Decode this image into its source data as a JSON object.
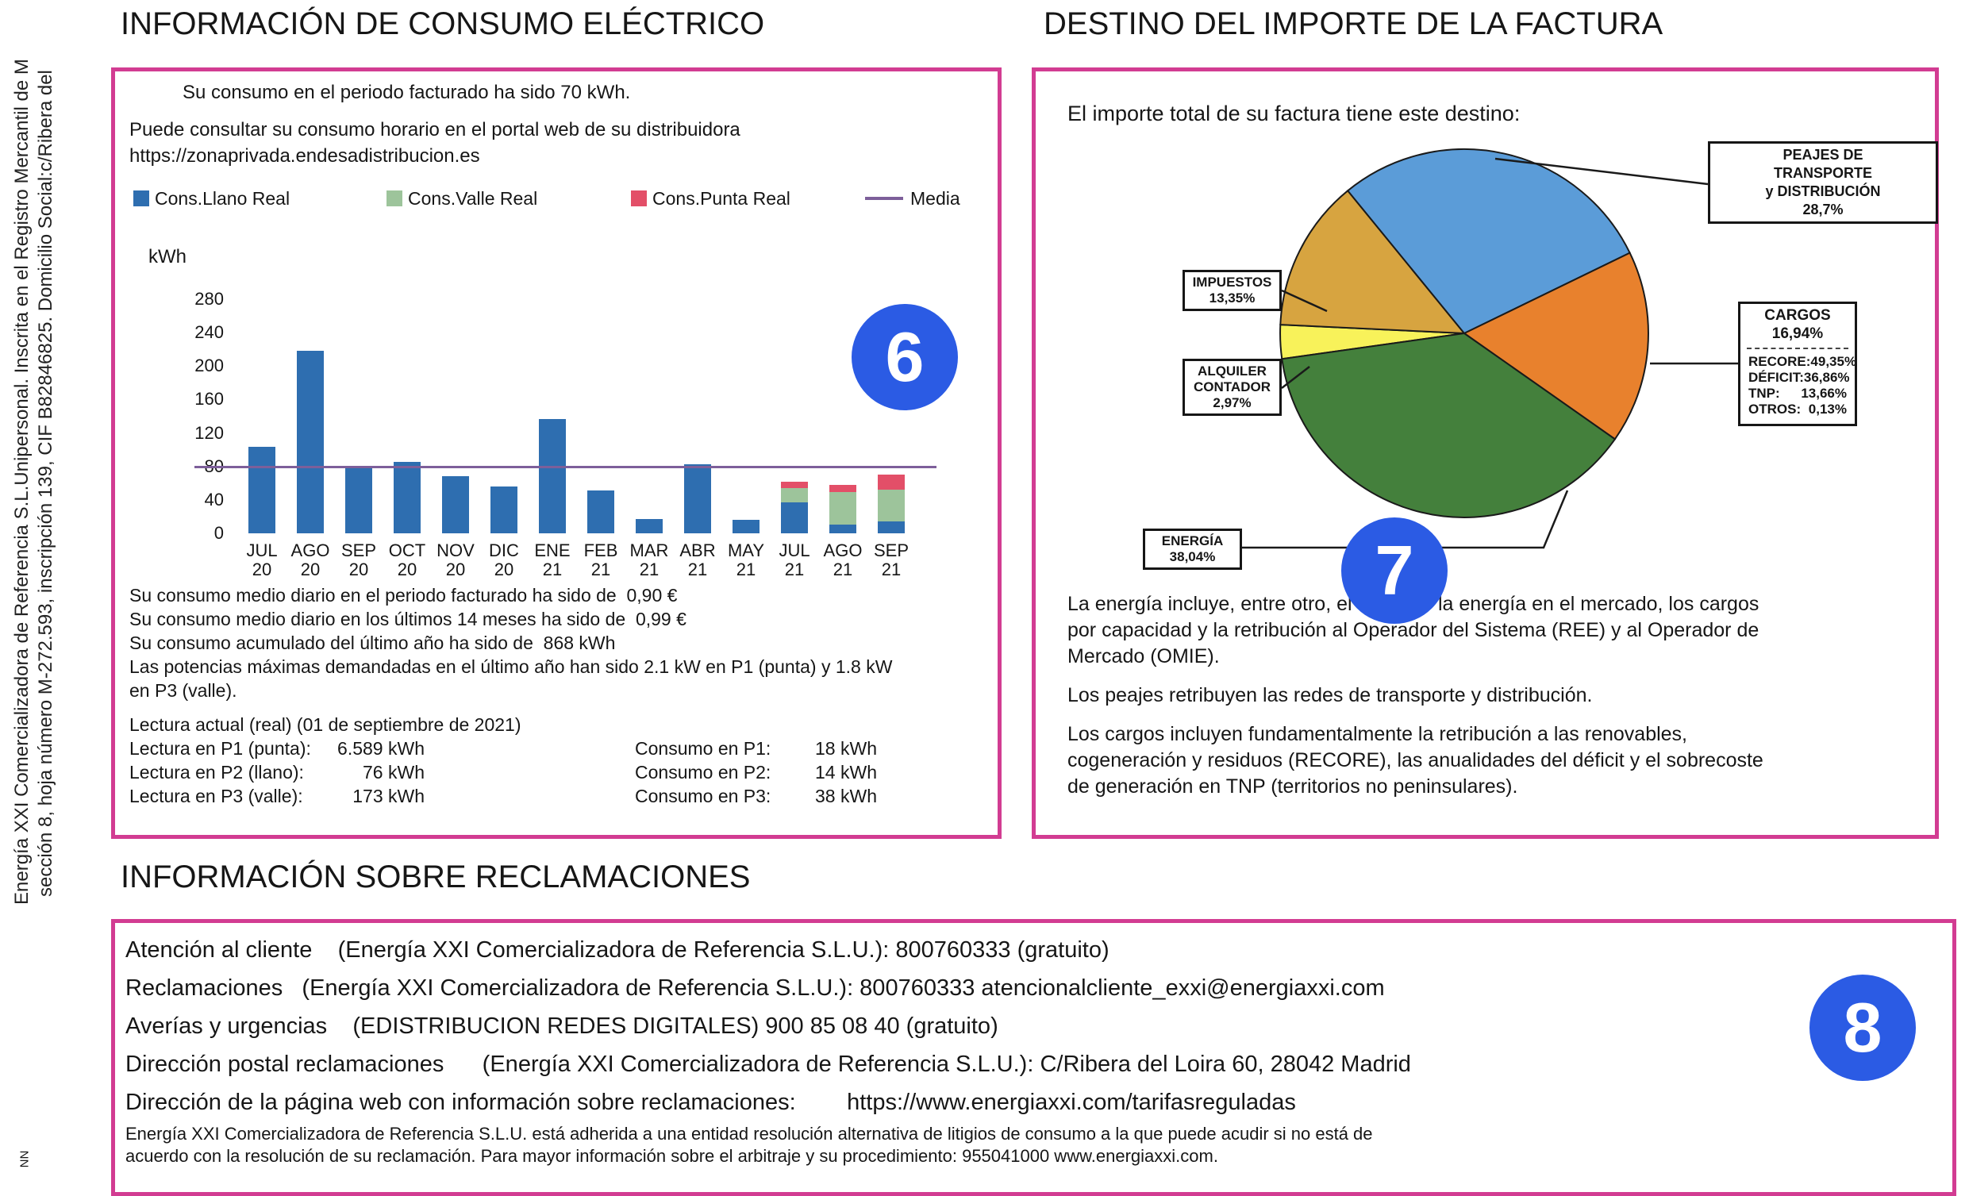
{
  "sidebar": {
    "line1": "Energía XXI Comercializadora de Referencia S.L.Unipersonal. Inscrita en el Registro Mercantil de M",
    "line2": "sección 8, hoja número M-272.593, inscripción 139, CIF B82846825. Domicilio Social:c/Ribera del",
    "corner": "NN"
  },
  "colors": {
    "panel_border_magenta": "#D23C92",
    "badge_blue": "#2B5BE4",
    "bar_blue": "#2E6EB0",
    "valle_green": "#9DC49B",
    "punta_red": "#E34F68",
    "media_purple": "#7D5F9A"
  },
  "consumo_panel": {
    "title": "INFORMACIÓN DE CONSUMO ELÉCTRICO",
    "badge": "6",
    "intro": "Su consumo en el periodo facturado ha sido 70 kWh.",
    "portal_line": "Puede consultar su consumo horario en el portal web de su distribuidora",
    "portal_url": "https://zonaprivada.endesadistribucion.es",
    "notes": [
      "Su consumo medio diario en el periodo facturado ha sido de  0,90 €",
      "Su consumo medio diario en los últimos 14 meses ha sido de  0,99 €",
      "Su consumo acumulado del último año ha sido de  868 kWh",
      "Las potencias máximas demandadas en el último año han sido 2.1 kW en P1 (punta) y 1.8 kW",
      "en P3 (valle)."
    ],
    "lectura_header": "Lectura actual (real) (01 de septiembre de 2021)",
    "lectura_rows": [
      {
        "label": "Lectura en P1 (punta):",
        "value": "6.589 kWh",
        "consumo_label": "Consumo en P1:",
        "consumo_value": "18 kWh"
      },
      {
        "label": "Lectura en P2 (llano):",
        "value": "76 kWh",
        "consumo_label": "Consumo en P2:",
        "consumo_value": "14 kWh"
      },
      {
        "label": "Lectura en P3 (valle):",
        "value": "173 kWh",
        "consumo_label": "Consumo en P3:",
        "consumo_value": "38 kWh"
      }
    ]
  },
  "chart_data": [
    {
      "type": "bar",
      "stacked": true,
      "title": "",
      "xlabel": "",
      "ylabel": "kWh",
      "ylim": [
        0,
        280
      ],
      "yticks": [
        0,
        40,
        80,
        120,
        160,
        200,
        240,
        280
      ],
      "grid": false,
      "legend_position": "top",
      "categories": [
        "JUL 20",
        "AGO 20",
        "SEP 20",
        "OCT 20",
        "NOV 20",
        "DIC 20",
        "ENE 21",
        "FEB 21",
        "MAR 21",
        "ABR 21",
        "MAY 21",
        "JUL 21",
        "AGO 21",
        "SEP 21"
      ],
      "series": [
        {
          "name": "Cons.Llano Real",
          "color": "#2E6EB0",
          "values": [
            103,
            218,
            80,
            85,
            68,
            56,
            137,
            51,
            17,
            83,
            16,
            37,
            10,
            14
          ]
        },
        {
          "name": "Cons.Valle Real",
          "color": "#9DC49B",
          "values": [
            0,
            0,
            0,
            0,
            0,
            0,
            0,
            0,
            0,
            0,
            0,
            17,
            39,
            38
          ]
        },
        {
          "name": "Cons.Punta Real",
          "color": "#E34F68",
          "values": [
            0,
            0,
            0,
            0,
            0,
            0,
            0,
            0,
            0,
            0,
            0,
            8,
            9,
            18
          ]
        }
      ],
      "media": {
        "name": "Media",
        "value": 79,
        "color": "#7D5F9A"
      }
    },
    {
      "type": "pie",
      "start_angle_deg": 262,
      "slices": [
        {
          "label": "ALQUILER CONTADOR",
          "pct": 2.97,
          "display": "2,97%",
          "color": "#F8F25A"
        },
        {
          "label": "IMPUESTOS",
          "pct": 13.35,
          "display": "13,35%",
          "color": "#D7A440"
        },
        {
          "label": "PEAJES DE TRANSPORTE y DISTRIBUCIÓN",
          "pct": 28.7,
          "display": "28,7%",
          "color": "#5B9CD8"
        },
        {
          "label": "CARGOS",
          "pct": 16.94,
          "display": "16,94%",
          "color": "#E8812D",
          "breakdown": {
            "RECORE": "49,35%",
            "DÉFICIT": "36,86%",
            "TNP": "13,66%",
            "OTROS": "0,13%"
          }
        },
        {
          "label": "ENERGÍA",
          "pct": 38.04,
          "display": "38,04%",
          "color": "#44803C"
        }
      ]
    }
  ],
  "destino_panel": {
    "title": "DESTINO DEL IMPORTE DE LA FACTURA",
    "badge": "7",
    "intro": "El importe total de su factura tiene este destino:",
    "labels": {
      "peajes": {
        "lines": [
          "PEAJES DE",
          "TRANSPORTE",
          "y DISTRIBUCIÓN"
        ],
        "pct": "28,7%"
      },
      "impuestos": {
        "lines": [
          "IMPUESTOS"
        ],
        "pct": "13,35%"
      },
      "alquiler": {
        "lines": [
          "ALQUILER",
          "CONTADOR"
        ],
        "pct": "2,97%"
      },
      "energia": {
        "lines": [
          "ENERGÍA"
        ],
        "pct": "38,04%"
      },
      "cargos": {
        "title": "CARGOS",
        "pct": "16,94%",
        "rows": [
          [
            "RECORE:",
            "49,35%"
          ],
          [
            "DÉFICIT:",
            "36,86%"
          ],
          [
            "TNP:",
            "13,66%"
          ],
          [
            "OTROS:",
            "0,13%"
          ]
        ]
      }
    },
    "paragraphs": [
      [
        "La energía incluye, entre otro, el coste de la energía en el mercado, los cargos",
        "por capacidad y la retribución al Operador del Sistema (REE) y al Operador de",
        "Mercado (OMIE)."
      ],
      [
        "Los peajes retribuyen las redes de transporte y distribución."
      ],
      [
        "Los cargos incluyen fundamentalmente la retribución a las renovables,",
        "cogeneración y residuos (RECORE), las anualidades del déficit y el sobrecoste",
        "de generación en TNP (territorios no peninsulares)."
      ]
    ]
  },
  "reclamaciones": {
    "title": "INFORMACIÓN SOBRE RECLAMACIONES",
    "badge": "8",
    "rows": [
      "Atención al cliente    (Energía XXI Comercializadora de Referencia S.L.U.): 800760333 (gratuito)",
      "Reclamaciones   (Energía XXI Comercializadora de Referencia S.L.U.): 800760333 atencionalcliente_exxi@energiaxxi.com",
      "Averías y urgencias    (EDISTRIBUCION REDES DIGITALES) 900 85 08 40 (gratuito)",
      "Dirección postal reclamaciones      (Energía XXI Comercializadora de Referencia S.L.U.): C/Ribera del Loira 60, 28042 Madrid",
      "Dirección de la página web con información sobre reclamaciones:        https://www.energiaxxi.com/tarifasreguladas"
    ],
    "fine_print": [
      "Energía XXI Comercializadora de Referencia S.L.U. está adherida a una entidad resolución alternativa de litigios de consumo a la que puede acudir si no está de",
      "acuerdo con la resolución de su reclamación. Para mayor información sobre el arbitraje y su procedimiento: 955041000 www.energiaxxi.com."
    ]
  }
}
